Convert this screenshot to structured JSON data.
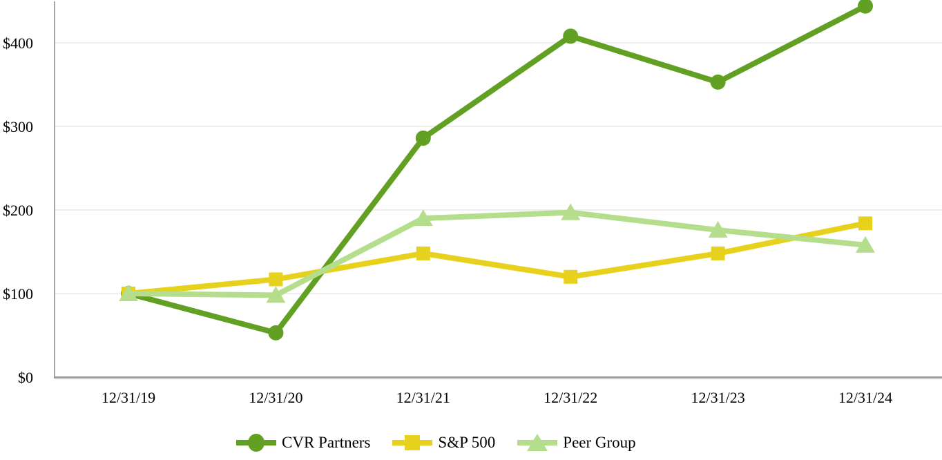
{
  "chart_data": {
    "type": "line",
    "title": "",
    "xlabel": "",
    "ylabel": "",
    "categories": [
      "12/31/19",
      "12/31/20",
      "12/31/21",
      "12/31/22",
      "12/31/23",
      "12/31/24"
    ],
    "series": [
      {
        "name": "CVR Partners",
        "marker": "circle",
        "color": "#62a023",
        "values": [
          100,
          53,
          286,
          408,
          353,
          444
        ]
      },
      {
        "name": "S&P 500",
        "marker": "square",
        "color": "#e6d21d",
        "values": [
          100,
          117,
          148,
          120,
          148,
          184
        ]
      },
      {
        "name": "Peer Group",
        "marker": "triangle",
        "color": "#b4de8b",
        "values": [
          100,
          98,
          190,
          197,
          176,
          158
        ]
      }
    ],
    "y_ticks": [
      {
        "value": 0,
        "label": "$0"
      },
      {
        "value": 100,
        "label": "$100"
      },
      {
        "value": 200,
        "label": "$200"
      },
      {
        "value": 300,
        "label": "$300"
      },
      {
        "value": 400,
        "label": "$400"
      }
    ],
    "ylim": [
      0,
      451
    ],
    "grid": "horizontal",
    "legend_position": "bottom",
    "colors": {
      "gridline": "#e9e9e9",
      "y_axis_line": "#a6a6a6",
      "x_axis_line": "#9b9b9b",
      "text": "#000000",
      "background": "#ffffff"
    }
  }
}
